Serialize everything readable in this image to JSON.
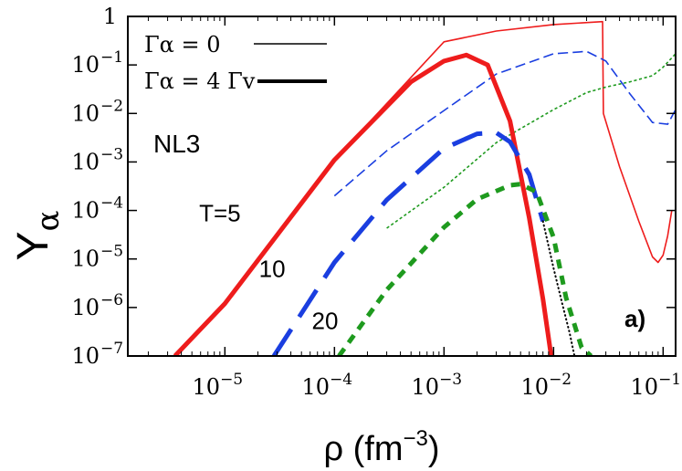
{
  "chart_data": {
    "type": "line",
    "panel_label": "a)",
    "model_label": "NL3",
    "xlabel": "ρ (fm",
    "xlabel_exp": "−3",
    "xlabel_close": ")",
    "ylabel": "Y",
    "ylabel_sub": "α",
    "xscale": "log",
    "yscale": "log",
    "xlim": [
      1.3e-06,
      0.13
    ],
    "ylim": [
      1e-07,
      1
    ],
    "x_ticks": [
      {
        "value": 1e-05,
        "mantissa": "10",
        "exp": "−5"
      },
      {
        "value": 0.0001,
        "mantissa": "10",
        "exp": "−4"
      },
      {
        "value": 0.001,
        "mantissa": "10",
        "exp": "−3"
      },
      {
        "value": 0.01,
        "mantissa": "10",
        "exp": "−2"
      },
      {
        "value": 0.1,
        "mantissa": "10",
        "exp": "−1"
      }
    ],
    "y_ticks": [
      {
        "value": 1,
        "mantissa": "1",
        "exp": ""
      },
      {
        "value": 0.1,
        "mantissa": "10",
        "exp": "−1"
      },
      {
        "value": 0.01,
        "mantissa": "10",
        "exp": "−2"
      },
      {
        "value": 0.001,
        "mantissa": "10",
        "exp": "−3"
      },
      {
        "value": 0.0001,
        "mantissa": "10",
        "exp": "−4"
      },
      {
        "value": 1e-05,
        "mantissa": "10",
        "exp": "−5"
      },
      {
        "value": 1e-06,
        "mantissa": "10",
        "exp": "−6"
      },
      {
        "value": 1e-07,
        "mantissa": "10",
        "exp": "−7"
      }
    ],
    "legend": {
      "position": "top-left",
      "entries": [
        {
          "label": "Γα = 0",
          "style": "thin"
        },
        {
          "label": "Γα = 4 Γv",
          "style": "thick"
        }
      ]
    },
    "temperature_labels": [
      {
        "text": "T=5",
        "x": 9e-06,
        "y": 6e-05
      },
      {
        "text": "10",
        "x": 2.7e-05,
        "y": 4.2e-06
      },
      {
        "text": "20",
        "x": 8.2e-05,
        "y": 3.6e-07
      }
    ],
    "colors": {
      "T5": "#ee1c1c",
      "T10": "#1a3ee0",
      "T20": "#1e9a1e",
      "extra": "#000000",
      "axis": "#000000"
    },
    "series": [
      {
        "key": "t5_thin",
        "color": "#ee1c1c",
        "dash": "solid",
        "width": 1.6,
        "x": [
          3.5e-06,
          1e-05,
          0.0001,
          0.001,
          0.003,
          0.01,
          0.028,
          0.0285,
          0.04,
          0.06,
          0.08,
          0.09,
          0.1,
          0.11,
          0.12
        ],
        "y": [
          1e-07,
          1.2e-06,
          0.0011,
          0.3,
          0.5,
          0.68,
          0.78,
          0.01,
          0.0008,
          6e-05,
          1.1e-05,
          8.5e-06,
          1.2e-05,
          3e-05,
          0.0001
        ]
      },
      {
        "key": "t10_thin",
        "color": "#1a3ee0",
        "dash": "long",
        "width": 1.6,
        "x": [
          0.0001,
          0.0003,
          0.001,
          0.003,
          0.01,
          0.02,
          0.03,
          0.05,
          0.08,
          0.11,
          0.13
        ],
        "y": [
          0.0002,
          0.0017,
          0.0115,
          0.065,
          0.17,
          0.19,
          0.12,
          0.025,
          0.0065,
          0.006,
          0.012
        ]
      },
      {
        "key": "t20_thin",
        "color": "#1e9a1e",
        "dash": "short",
        "width": 1.6,
        "x": [
          0.0003,
          0.001,
          0.003,
          0.01,
          0.02,
          0.03,
          0.05,
          0.08,
          0.1,
          0.13
        ],
        "y": [
          4.3e-05,
          0.0003,
          0.0025,
          0.012,
          0.027,
          0.035,
          0.045,
          0.06,
          0.09,
          0.17
        ]
      },
      {
        "key": "t5_thick",
        "color": "#ee1c1c",
        "dash": "solid",
        "width": 5,
        "x": [
          3.5e-06,
          1e-05,
          0.0001,
          0.0005,
          0.001,
          0.0016,
          0.0025,
          0.004,
          0.006,
          0.008,
          0.0095
        ],
        "y": [
          1e-07,
          1.2e-06,
          0.0011,
          0.045,
          0.12,
          0.16,
          0.1,
          0.007,
          7e-05,
          1.5e-06,
          1e-07
        ]
      },
      {
        "key": "t10_thick",
        "color": "#1a3ee0",
        "dash": "long",
        "width": 5,
        "x": [
          2.8e-05,
          0.0001,
          0.0003,
          0.001,
          0.002,
          0.003,
          0.004,
          0.006,
          0.008
        ],
        "y": [
          1e-07,
          8.5e-06,
          0.000165,
          0.0019,
          0.0038,
          0.004,
          0.0026,
          0.00055,
          6e-05
        ]
      },
      {
        "key": "t20_thick",
        "color": "#1e9a1e",
        "dash": "short",
        "width": 5,
        "x": [
          0.00011,
          0.0003,
          0.001,
          0.002,
          0.004,
          0.005,
          0.007,
          0.01,
          0.013,
          0.018,
          0.022
        ],
        "y": [
          1e-07,
          2.3e-06,
          4.5e-05,
          0.00017,
          0.00033,
          0.00035,
          0.00024,
          2.8e-05,
          1.6e-06,
          1.5e-07,
          1e-07
        ]
      },
      {
        "key": "t10_dotted_tail",
        "color": "#000000",
        "dash": "dot",
        "width": 2,
        "x": [
          0.008,
          0.01,
          0.012,
          0.014,
          0.0155
        ],
        "y": [
          6e-05,
          6.5e-06,
          1.2e-06,
          3e-07,
          1e-07
        ]
      }
    ]
  }
}
